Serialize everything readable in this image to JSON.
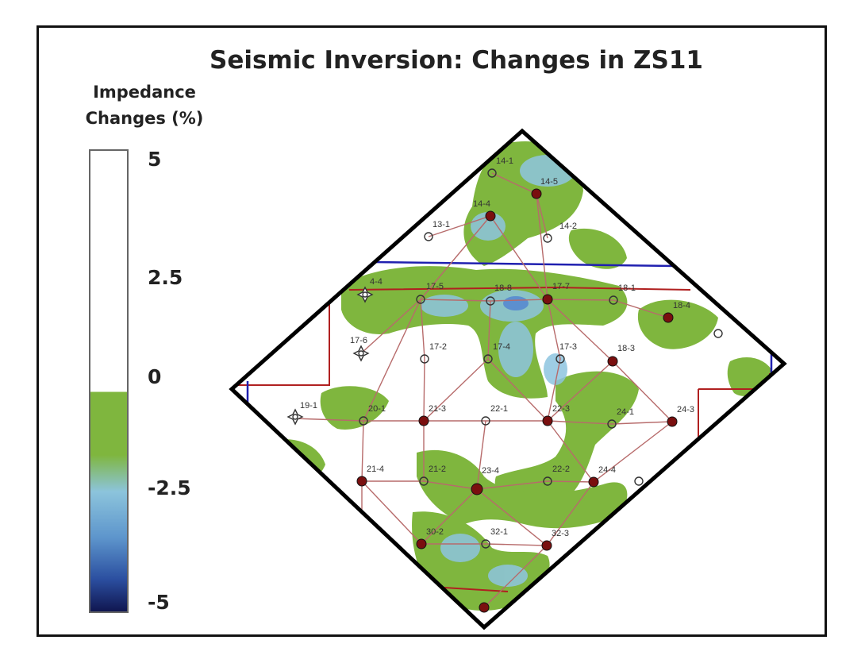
{
  "title": "Seismic Inversion: Changes in ZS11",
  "legend": {
    "title_line1": "Impedance",
    "title_line2": "Changes (%)",
    "ticks": [
      "5",
      "2.5",
      "0",
      "-2.5",
      "-5"
    ],
    "range": [
      -5,
      5
    ],
    "colors": {
      "positive": "#ffffff",
      "zero_to_neg": "#7fb63e",
      "mid_neg": "#8cc4dc",
      "strong_neg": "#2b4fa0",
      "min": "#101650"
    }
  },
  "map": {
    "colors": {
      "anomaly_green": "#7fb63e",
      "anomaly_blue": "#8ec5e0",
      "well_line": "#b76b6b",
      "boundary_red": "#b02020",
      "boundary_blue": "#2020b0",
      "outline": "#000000"
    },
    "wells": [
      {
        "label": "14-1",
        "type": "open"
      },
      {
        "label": "14-5",
        "type": "producer"
      },
      {
        "label": "14-4",
        "type": "producer"
      },
      {
        "label": "13-1",
        "type": "open"
      },
      {
        "label": "14-2",
        "type": "open"
      },
      {
        "label": "4-4",
        "type": "injector"
      },
      {
        "label": "17-5",
        "type": "open"
      },
      {
        "label": "18-8",
        "type": "open"
      },
      {
        "label": "17-7",
        "type": "producer"
      },
      {
        "label": "18-1",
        "type": "open"
      },
      {
        "label": "18-4",
        "type": "producer"
      },
      {
        "label": "17-6",
        "type": "injector"
      },
      {
        "label": "17-2",
        "type": "open"
      },
      {
        "label": "17-4",
        "type": "open"
      },
      {
        "label": "17-3",
        "type": "open"
      },
      {
        "label": "18-3",
        "type": "producer"
      },
      {
        "label": "19-1",
        "type": "injector"
      },
      {
        "label": "20-1",
        "type": "open"
      },
      {
        "label": "21-3",
        "type": "producer"
      },
      {
        "label": "22-1",
        "type": "open"
      },
      {
        "label": "22-3",
        "type": "producer"
      },
      {
        "label": "24-1",
        "type": "open"
      },
      {
        "label": "24-3",
        "type": "producer"
      },
      {
        "label": "21-4",
        "type": "producer"
      },
      {
        "label": "21-2",
        "type": "open"
      },
      {
        "label": "23-4",
        "type": "producer"
      },
      {
        "label": "22-2",
        "type": "open"
      },
      {
        "label": "24-4",
        "type": "producer"
      },
      {
        "label": "30-2",
        "type": "producer"
      },
      {
        "label": "32-1",
        "type": "open"
      },
      {
        "label": "32-3",
        "type": "producer"
      }
    ]
  }
}
